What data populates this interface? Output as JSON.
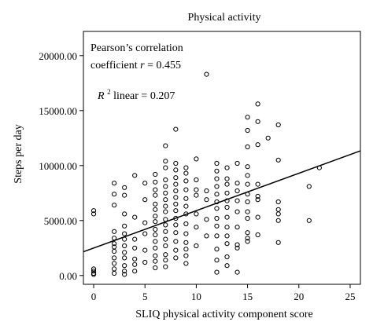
{
  "chart_data": {
    "type": "scatter",
    "title": "Physical activity",
    "xlabel": "SLIQ physical activity component score",
    "ylabel": "Steps per day",
    "xlim": [
      -1,
      26
    ],
    "ylim": [
      -800,
      22200
    ],
    "xticks": [
      0,
      5,
      10,
      15,
      20,
      25
    ],
    "xtick_labels": [
      "0",
      "5",
      "10",
      "15",
      "20",
      "25"
    ],
    "yticks": [
      0,
      5000,
      10000,
      15000,
      20000
    ],
    "ytick_labels": [
      "0.00",
      "5000.00",
      "10000.00",
      "15000.00",
      "20000.00"
    ],
    "grid": false,
    "annotations": {
      "pearson_line1": "Pearson’s correlation",
      "pearson_line2_prefix": "coefficient",
      "pearson_r_symbol": "r",
      "pearson_line2_suffix": "= 0.455",
      "r2_symbol": "R",
      "r2_exponent": "2",
      "r2_suffix": "linear = 0.207"
    },
    "fit_line": {
      "intercept": 2500,
      "slope": 340
    },
    "points": [
      [
        0,
        5900
      ],
      [
        0,
        5600
      ],
      [
        0,
        600
      ],
      [
        0,
        400
      ],
      [
        0,
        200
      ],
      [
        0,
        100
      ],
      [
        2,
        8400
      ],
      [
        2,
        7400
      ],
      [
        2,
        6400
      ],
      [
        2,
        4000
      ],
      [
        2,
        3400
      ],
      [
        2,
        2900
      ],
      [
        2,
        2600
      ],
      [
        2,
        2200
      ],
      [
        2,
        1600
      ],
      [
        2,
        1100
      ],
      [
        2,
        600
      ],
      [
        2,
        200
      ],
      [
        3,
        8000
      ],
      [
        3,
        7300
      ],
      [
        3,
        5600
      ],
      [
        3,
        4500
      ],
      [
        3,
        3800
      ],
      [
        3,
        3300
      ],
      [
        3,
        2700
      ],
      [
        3,
        2100
      ],
      [
        3,
        1600
      ],
      [
        3,
        900
      ],
      [
        3,
        400
      ],
      [
        3,
        100
      ],
      [
        4,
        9100
      ],
      [
        4,
        5300
      ],
      [
        4,
        3300
      ],
      [
        4,
        2500
      ],
      [
        4,
        1500
      ],
      [
        4,
        1000
      ],
      [
        4,
        400
      ],
      [
        5,
        8400
      ],
      [
        5,
        6900
      ],
      [
        5,
        4800
      ],
      [
        5,
        3800
      ],
      [
        5,
        2300
      ],
      [
        5,
        1200
      ],
      [
        6,
        9200
      ],
      [
        6,
        8500
      ],
      [
        6,
        7800
      ],
      [
        6,
        7300
      ],
      [
        6,
        6500
      ],
      [
        6,
        6000
      ],
      [
        6,
        5400
      ],
      [
        6,
        4900
      ],
      [
        6,
        4200
      ],
      [
        6,
        3700
      ],
      [
        6,
        3100
      ],
      [
        6,
        2500
      ],
      [
        6,
        1800
      ],
      [
        6,
        1300
      ],
      [
        6,
        700
      ],
      [
        7,
        11800
      ],
      [
        7,
        10400
      ],
      [
        7,
        9800
      ],
      [
        7,
        8700
      ],
      [
        7,
        8100
      ],
      [
        7,
        7500
      ],
      [
        7,
        6900
      ],
      [
        7,
        6300
      ],
      [
        7,
        5800
      ],
      [
        7,
        5100
      ],
      [
        7,
        4600
      ],
      [
        7,
        4000
      ],
      [
        7,
        3300
      ],
      [
        7,
        2700
      ],
      [
        7,
        1900
      ],
      [
        7,
        1400
      ],
      [
        7,
        800
      ],
      [
        8,
        13300
      ],
      [
        8,
        10200
      ],
      [
        8,
        9600
      ],
      [
        8,
        8900
      ],
      [
        8,
        8300
      ],
      [
        8,
        7700
      ],
      [
        8,
        7100
      ],
      [
        8,
        6500
      ],
      [
        8,
        5900
      ],
      [
        8,
        5200
      ],
      [
        8,
        4600
      ],
      [
        8,
        3900
      ],
      [
        8,
        3100
      ],
      [
        8,
        2300
      ],
      [
        8,
        1600
      ],
      [
        9,
        9800
      ],
      [
        9,
        9300
      ],
      [
        9,
        8600
      ],
      [
        9,
        7800
      ],
      [
        9,
        7000
      ],
      [
        9,
        6300
      ],
      [
        9,
        5600
      ],
      [
        9,
        4700
      ],
      [
        9,
        3800
      ],
      [
        9,
        3000
      ],
      [
        9,
        2400
      ],
      [
        9,
        1800
      ],
      [
        9,
        1100
      ],
      [
        10,
        10600
      ],
      [
        10,
        8700
      ],
      [
        10,
        7800
      ],
      [
        10,
        7300
      ],
      [
        10,
        5600
      ],
      [
        10,
        4400
      ],
      [
        10,
        2700
      ],
      [
        11,
        18300
      ],
      [
        11,
        7700
      ],
      [
        11,
        6900
      ],
      [
        11,
        5100
      ],
      [
        11,
        3600
      ],
      [
        12,
        10200
      ],
      [
        12,
        9500
      ],
      [
        12,
        8800
      ],
      [
        12,
        8100
      ],
      [
        12,
        7400
      ],
      [
        12,
        6700
      ],
      [
        12,
        6100
      ],
      [
        12,
        5200
      ],
      [
        12,
        4500
      ],
      [
        12,
        3600
      ],
      [
        12,
        2400
      ],
      [
        12,
        1400
      ],
      [
        12,
        300
      ],
      [
        13,
        9800
      ],
      [
        13,
        8800
      ],
      [
        13,
        8300
      ],
      [
        13,
        7500
      ],
      [
        13,
        6800
      ],
      [
        13,
        6200
      ],
      [
        13,
        5300
      ],
      [
        13,
        4400
      ],
      [
        13,
        3600
      ],
      [
        13,
        2900
      ],
      [
        13,
        1700
      ],
      [
        13,
        900
      ],
      [
        14,
        10200
      ],
      [
        14,
        8400
      ],
      [
        14,
        7700
      ],
      [
        14,
        6800
      ],
      [
        14,
        5800
      ],
      [
        14,
        4400
      ],
      [
        14,
        2800
      ],
      [
        14,
        2500
      ],
      [
        14,
        300
      ],
      [
        15,
        14400
      ],
      [
        15,
        13200
      ],
      [
        15,
        11700
      ],
      [
        15,
        9900
      ],
      [
        15,
        9100
      ],
      [
        15,
        8300
      ],
      [
        15,
        7400
      ],
      [
        15,
        6700
      ],
      [
        15,
        5800
      ],
      [
        15,
        5200
      ],
      [
        15,
        3900
      ],
      [
        15,
        3400
      ],
      [
        15,
        3100
      ],
      [
        16,
        15600
      ],
      [
        16,
        14000
      ],
      [
        16,
        11900
      ],
      [
        16,
        8300
      ],
      [
        16,
        7200
      ],
      [
        16,
        6900
      ],
      [
        16,
        5300
      ],
      [
        16,
        3700
      ],
      [
        17,
        12500
      ],
      [
        18,
        13700
      ],
      [
        18,
        10500
      ],
      [
        18,
        6700
      ],
      [
        18,
        6000
      ],
      [
        18,
        5600
      ],
      [
        18,
        5000
      ],
      [
        18,
        3000
      ],
      [
        21,
        8100
      ],
      [
        21,
        5000
      ],
      [
        22,
        9800
      ]
    ]
  }
}
